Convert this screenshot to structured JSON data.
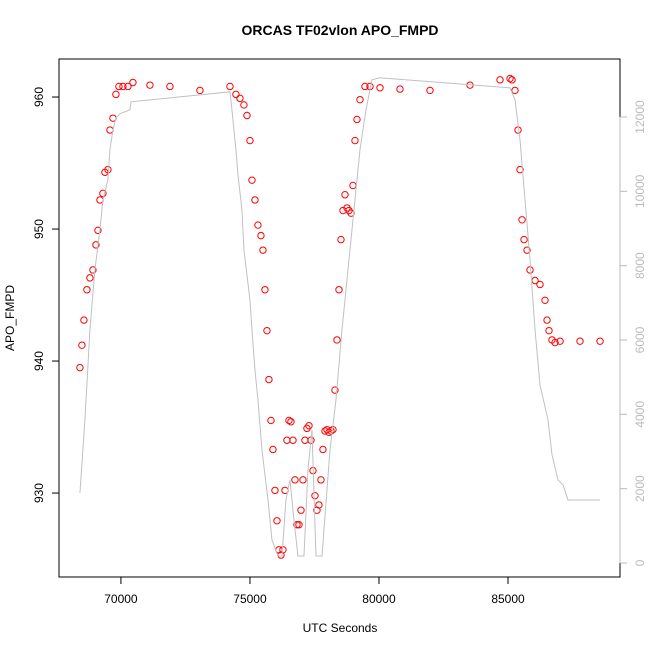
{
  "chart_data": {
    "type": "scatter",
    "title": "ORCAS TF02vlon APO_FMPD",
    "x_label": "UTC Seconds",
    "y_label": "APO_FMPD",
    "xlim": [
      67600,
      89340
    ],
    "xticks": [
      70000,
      75000,
      80000,
      85000
    ],
    "ylim": [
      923.64,
      962.88
    ],
    "yticks": [
      930,
      940,
      950,
      960
    ],
    "y2lim": [
      -377,
      13561
    ],
    "y2ticks": [
      0,
      2000,
      4000,
      6000,
      8000,
      10000,
      12000
    ],
    "y2_color": "#bbbbbb",
    "series": [
      {
        "color": "#ff0000",
        "marker": "open-circle",
        "x": [
          68411,
          68488,
          68566,
          68682,
          68798,
          68915,
          69031,
          69109,
          69186,
          69302,
          69380,
          69496,
          69574,
          69690,
          69806,
          69922,
          70078,
          70271,
          70465,
          71124,
          71899,
          73062,
          74225,
          74457,
          74612,
          74767,
          74884,
          75000,
          75078,
          75194,
          75310,
          75426,
          75504,
          75581,
          75659,
          75736,
          75814,
          75891,
          75969,
          76047,
          76124,
          76202,
          76279,
          76357,
          76434,
          76512,
          76589,
          76667,
          76744,
          76822,
          76899,
          76977,
          77054,
          77132,
          77209,
          77287,
          77364,
          77442,
          77519,
          77597,
          77674,
          77752,
          77829,
          77907,
          77985,
          78062,
          78140,
          78217,
          78295,
          78372,
          78450,
          78527,
          78605,
          78682,
          78760,
          78837,
          78915,
          78992,
          79070,
          79147,
          79264,
          79457,
          79651,
          80039,
          80814,
          81977,
          83527,
          84690,
          85078,
          85155,
          85271,
          85388,
          85465,
          85543,
          85620,
          85736,
          85853,
          86047,
          86240,
          86434,
          86512,
          86589,
          86705,
          86822,
          87016,
          87791,
          88566
        ],
        "values": [
          939.5,
          941.2,
          943.1,
          945.4,
          946.3,
          946.9,
          948.8,
          949.9,
          952.2,
          952.7,
          954.3,
          954.5,
          957.5,
          958.4,
          960.2,
          960.8,
          960.8,
          960.8,
          961.1,
          960.9,
          960.8,
          960.5,
          960.8,
          960.2,
          959.9,
          959.4,
          958.6,
          956.7,
          953.7,
          952.2,
          950.3,
          949.5,
          948.4,
          945.4,
          942.3,
          938.6,
          935.5,
          933.3,
          930.2,
          927.9,
          925.7,
          925.3,
          925.7,
          930.2,
          934.0,
          935.5,
          935.4,
          934.0,
          931.0,
          927.6,
          927.6,
          928.7,
          931.0,
          934.0,
          934.9,
          935.1,
          934.0,
          931.7,
          929.8,
          928.7,
          929.1,
          931.0,
          933.3,
          934.7,
          934.8,
          934.6,
          934.7,
          934.8,
          937.8,
          941.6,
          945.4,
          949.2,
          951.4,
          952.6,
          951.6,
          951.4,
          951.2,
          953.3,
          956.7,
          958.3,
          959.8,
          960.8,
          960.8,
          960.7,
          960.6,
          960.5,
          960.9,
          961.3,
          961.4,
          961.3,
          960.5,
          957.5,
          954.5,
          950.7,
          949.2,
          948.4,
          946.9,
          946.1,
          945.8,
          944.6,
          943.1,
          942.3,
          941.6,
          941.4,
          941.5,
          941.5,
          941.5
        ]
      },
      {
        "color": "#c0c0c0",
        "marker": "line",
        "axis": "y2",
        "x": [
          68411,
          68605,
          68798,
          68992,
          69186,
          69302,
          69496,
          69574,
          69690,
          69806,
          69961,
          70349,
          70388,
          74225,
          74302,
          74457,
          74535,
          74690,
          74767,
          75000,
          75078,
          75194,
          75310,
          75465,
          75698,
          75853,
          76085,
          76240,
          76395,
          76550,
          76705,
          76860,
          77093,
          77248,
          77403,
          77558,
          77791,
          78101,
          78333,
          78566,
          78798,
          79031,
          79264,
          79496,
          79729,
          80039,
          85078,
          85271,
          85465,
          85659,
          85853,
          86047,
          86240,
          86550,
          86705,
          86938,
          87132,
          87326,
          87519,
          88566
        ],
        "values": [
          1884,
          3849,
          6272,
          7887,
          8964,
          9771,
          10310,
          11117,
          11655,
          11978,
          12086,
          12194,
          12409,
          12678,
          12194,
          11117,
          10444,
          9502,
          8425,
          7079,
          6272,
          5195,
          4388,
          3042,
          1696,
          619,
          188,
          188,
          1696,
          2234,
          1157,
          188,
          188,
          2503,
          3580,
          188,
          188,
          3042,
          4388,
          6272,
          7887,
          9502,
          11117,
          12194,
          13001,
          13055,
          12786,
          12463,
          11386,
          9771,
          8156,
          6272,
          4791,
          3849,
          2907,
          2234,
          2100,
          1696,
          1696,
          1696
        ]
      }
    ]
  }
}
